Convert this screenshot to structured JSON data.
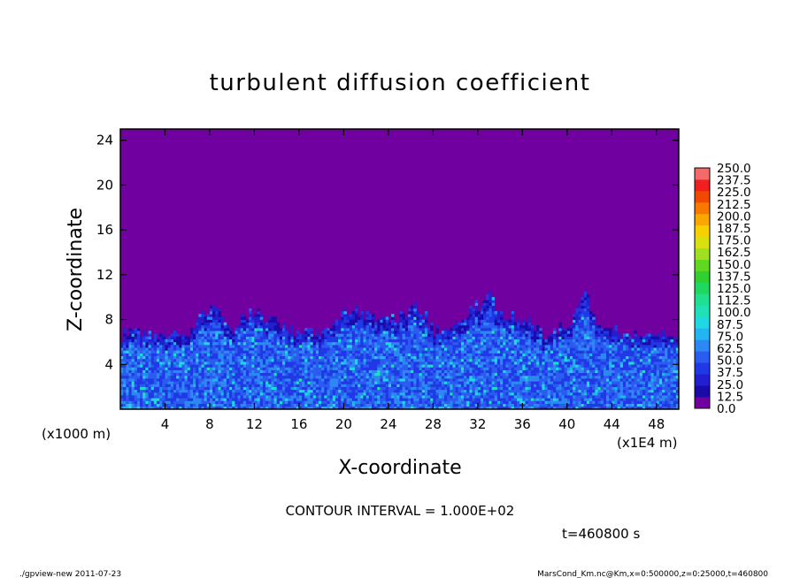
{
  "chart_data": {
    "type": "heatmap",
    "title": "turbulent diffusion coefficient",
    "xlabel": "X-coordinate",
    "ylabel": "Z-coordinate",
    "x_unit_label": "(x1E4 m)",
    "y_unit_label": "(x1000 m)",
    "xlim": [
      0,
      50
    ],
    "ylim": [
      0,
      25
    ],
    "x_ticks": [
      4,
      8,
      12,
      16,
      20,
      24,
      28,
      32,
      36,
      40,
      44,
      48
    ],
    "y_ticks": [
      4,
      8,
      12,
      16,
      20,
      24
    ],
    "colorbar": {
      "levels": [
        "0.0",
        "12.5",
        "25.0",
        "37.5",
        "50.0",
        "62.5",
        "75.0",
        "87.5",
        "100.0",
        "112.5",
        "125.0",
        "137.5",
        "150.0",
        "162.5",
        "175.0",
        "187.5",
        "200.0",
        "212.5",
        "225.0",
        "237.5",
        "250.0"
      ],
      "colors": [
        "#7000a0",
        "#1a0aa8",
        "#2020d0",
        "#2038e6",
        "#2a5cf0",
        "#2c88f2",
        "#24b4f0",
        "#20d8e4",
        "#20e0b8",
        "#20e090",
        "#20d860",
        "#30d030",
        "#60d820",
        "#a0e020",
        "#d8e010",
        "#f8d000",
        "#f8a800",
        "#f87800",
        "#f04a00",
        "#f02020",
        "#f46a6a"
      ]
    },
    "contour_interval": "CONTOUR INTERVAL = 1.000E+02",
    "time": "t=460800 s",
    "field_summary": "values near 0 above ~6-9 km; boundary layer 0-7 km mostly 12.5-75 with peaks near 100"
  },
  "footer": {
    "left": "./gpview-new   2011-07-23",
    "right": "MarsCond_Km.nc@Km,x=0:500000,z=0:25000,t=460800"
  }
}
